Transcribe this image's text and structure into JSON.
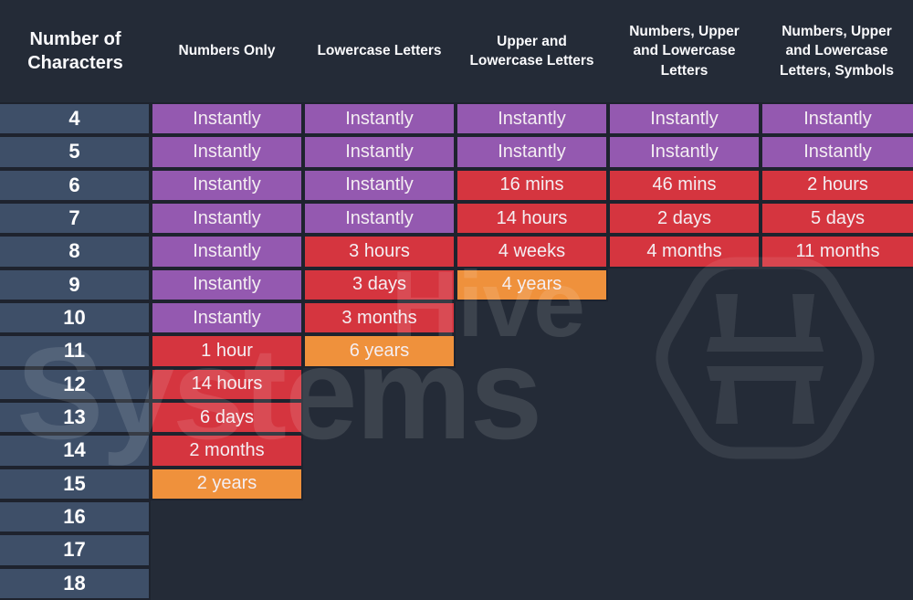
{
  "chart_data": {
    "type": "table",
    "description_of_visual": "Password brute-force time table; colored cells indicate crack time severity",
    "columns": [
      "Number of Characters",
      "Numbers Only",
      "Lowercase Letters",
      "Upper and Lowercase Letters",
      "Numbers, Upper and Lowercase Letters",
      "Numbers, Upper and Lowercase Letters, Symbols"
    ],
    "rows": [
      {
        "chars": "4",
        "cells": [
          {
            "text": "Instantly",
            "level": "purple"
          },
          {
            "text": "Instantly",
            "level": "purple"
          },
          {
            "text": "Instantly",
            "level": "purple"
          },
          {
            "text": "Instantly",
            "level": "purple"
          },
          {
            "text": "Instantly",
            "level": "purple"
          }
        ]
      },
      {
        "chars": "5",
        "cells": [
          {
            "text": "Instantly",
            "level": "purple"
          },
          {
            "text": "Instantly",
            "level": "purple"
          },
          {
            "text": "Instantly",
            "level": "purple"
          },
          {
            "text": "Instantly",
            "level": "purple"
          },
          {
            "text": "Instantly",
            "level": "purple"
          }
        ]
      },
      {
        "chars": "6",
        "cells": [
          {
            "text": "Instantly",
            "level": "purple"
          },
          {
            "text": "Instantly",
            "level": "purple"
          },
          {
            "text": "16 mins",
            "level": "red"
          },
          {
            "text": "46 mins",
            "level": "red"
          },
          {
            "text": "2 hours",
            "level": "red"
          }
        ]
      },
      {
        "chars": "7",
        "cells": [
          {
            "text": "Instantly",
            "level": "purple"
          },
          {
            "text": "Instantly",
            "level": "purple"
          },
          {
            "text": "14 hours",
            "level": "red"
          },
          {
            "text": "2 days",
            "level": "red"
          },
          {
            "text": "5 days",
            "level": "red"
          }
        ]
      },
      {
        "chars": "8",
        "cells": [
          {
            "text": "Instantly",
            "level": "purple"
          },
          {
            "text": "3 hours",
            "level": "red"
          },
          {
            "text": "4 weeks",
            "level": "red"
          },
          {
            "text": "4 months",
            "level": "red"
          },
          {
            "text": "11 months",
            "level": "red"
          }
        ]
      },
      {
        "chars": "9",
        "cells": [
          {
            "text": "Instantly",
            "level": "purple"
          },
          {
            "text": "3 days",
            "level": "red"
          },
          {
            "text": "4 years",
            "level": "orange"
          },
          null,
          null
        ]
      },
      {
        "chars": "10",
        "cells": [
          {
            "text": "Instantly",
            "level": "purple"
          },
          {
            "text": "3 months",
            "level": "red"
          },
          null,
          null,
          null
        ]
      },
      {
        "chars": "11",
        "cells": [
          {
            "text": "1 hour",
            "level": "red"
          },
          {
            "text": "6 years",
            "level": "orange"
          },
          null,
          null,
          null
        ]
      },
      {
        "chars": "12",
        "cells": [
          {
            "text": "14 hours",
            "level": "red"
          },
          null,
          null,
          null,
          null
        ]
      },
      {
        "chars": "13",
        "cells": [
          {
            "text": "6 days",
            "level": "red"
          },
          null,
          null,
          null,
          null
        ]
      },
      {
        "chars": "14",
        "cells": [
          {
            "text": "2 months",
            "level": "red"
          },
          null,
          null,
          null,
          null
        ]
      },
      {
        "chars": "15",
        "cells": [
          {
            "text": "2 years",
            "level": "orange"
          },
          null,
          null,
          null,
          null
        ]
      },
      {
        "chars": "16",
        "cells": [
          null,
          null,
          null,
          null,
          null
        ]
      },
      {
        "chars": "17",
        "cells": [
          null,
          null,
          null,
          null,
          null
        ]
      },
      {
        "chars": "18",
        "cells": [
          null,
          null,
          null,
          null,
          null
        ]
      }
    ],
    "palette": {
      "purple": "#9459B0",
      "red": "#D5353F",
      "orange": "#EF913C",
      "row_header": "#3E4F68",
      "background": "#242B37",
      "grid_line": "#1E232E",
      "text": "#F4EEF2"
    },
    "legend_position": "none",
    "grid": "dark gaps between cells"
  },
  "watermark": {
    "line1": "Hive",
    "line2": "Systems",
    "logo": "hive-hexagon-logo"
  }
}
